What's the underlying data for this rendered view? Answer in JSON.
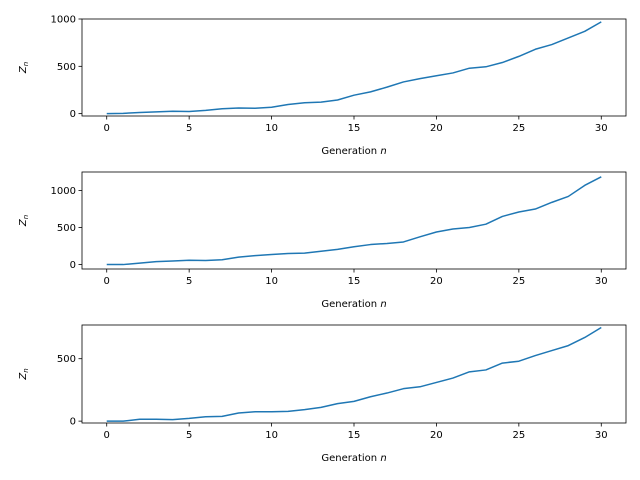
{
  "colors": {
    "series": "#1f77b4",
    "background": "#ffffff",
    "axes": "#000000"
  },
  "chart_data": [
    {
      "type": "line",
      "xlabel_text": "Generation ",
      "xlabel_var": "n",
      "ylabel_var": "Z",
      "ylabel_sub": "n",
      "xlim": [
        -1.5,
        31.5
      ],
      "ylim": [
        -25,
        1000
      ],
      "xticks": [
        0,
        5,
        10,
        15,
        20,
        25,
        30
      ],
      "yticks": [
        0,
        500,
        1000
      ],
      "grid": false,
      "x": [
        0,
        1,
        2,
        3,
        4,
        5,
        6,
        7,
        8,
        9,
        10,
        11,
        12,
        13,
        14,
        15,
        16,
        17,
        18,
        19,
        20,
        21,
        22,
        23,
        24,
        25,
        26,
        27,
        28,
        29,
        30
      ],
      "series": [
        {
          "values": [
            0,
            3,
            12,
            18,
            25,
            22,
            35,
            52,
            60,
            57,
            67,
            96,
            115,
            122,
            144,
            195,
            230,
            280,
            335,
            370,
            400,
            430,
            480,
            495,
            540,
            605,
            680,
            730,
            800,
            870,
            970
          ]
        }
      ]
    },
    {
      "type": "line",
      "xlabel_text": "Generation ",
      "xlabel_var": "n",
      "ylabel_var": "Z",
      "ylabel_sub": "n",
      "xlim": [
        -1.5,
        31.5
      ],
      "ylim": [
        -60,
        1250
      ],
      "xticks": [
        0,
        5,
        10,
        15,
        20,
        25,
        30
      ],
      "yticks": [
        0,
        500,
        1000
      ],
      "grid": false,
      "x": [
        0,
        1,
        2,
        3,
        4,
        5,
        6,
        7,
        8,
        9,
        10,
        11,
        12,
        13,
        14,
        15,
        16,
        17,
        18,
        19,
        20,
        21,
        22,
        23,
        24,
        25,
        26,
        27,
        28,
        29,
        30
      ],
      "series": [
        {
          "values": [
            0,
            0,
            20,
            40,
            48,
            58,
            55,
            65,
            100,
            120,
            135,
            150,
            155,
            180,
            205,
            240,
            270,
            285,
            305,
            375,
            440,
            480,
            500,
            545,
            650,
            710,
            750,
            840,
            920,
            1070,
            1185
          ]
        }
      ]
    },
    {
      "type": "line",
      "xlabel_text": "Generation ",
      "xlabel_var": "n",
      "ylabel_var": "Z",
      "ylabel_sub": "n",
      "xlim": [
        -1.5,
        31.5
      ],
      "ylim": [
        -15,
        770
      ],
      "xticks": [
        0,
        5,
        10,
        15,
        20,
        25,
        30
      ],
      "yticks": [
        0,
        500
      ],
      "grid": false,
      "x": [
        0,
        1,
        2,
        3,
        4,
        5,
        6,
        7,
        8,
        9,
        10,
        11,
        12,
        13,
        14,
        15,
        16,
        17,
        18,
        19,
        20,
        21,
        22,
        23,
        24,
        25,
        26,
        27,
        28,
        29,
        30
      ],
      "series": [
        {
          "values": [
            0,
            0,
            15,
            15,
            12,
            22,
            35,
            38,
            65,
            75,
            75,
            78,
            92,
            110,
            140,
            158,
            195,
            225,
            260,
            275,
            310,
            345,
            395,
            410,
            465,
            480,
            525,
            565,
            605,
            670,
            750
          ]
        }
      ]
    }
  ]
}
